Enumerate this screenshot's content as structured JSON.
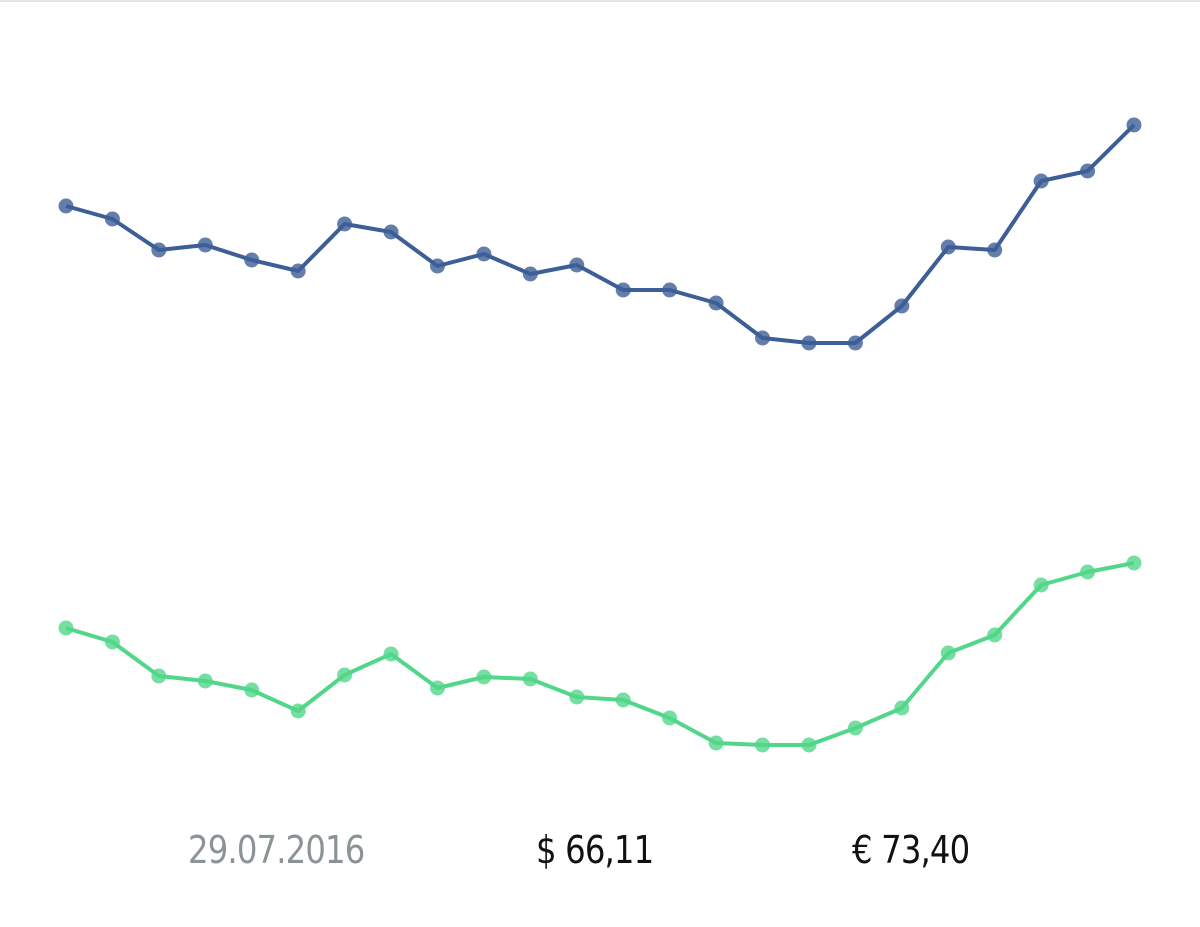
{
  "chart_data": [
    {
      "type": "line",
      "color": "#3d5e96",
      "ylim": [
        0,
        400
      ],
      "values": [
        194,
        181,
        150,
        155,
        140,
        129,
        176,
        168,
        134,
        146,
        126,
        135,
        110,
        110,
        97,
        62,
        57,
        57,
        94,
        153,
        150,
        219,
        229,
        275
      ]
    },
    {
      "type": "line",
      "color": "#52d68a",
      "ylim": [
        0,
        400
      ],
      "values": [
        172,
        158,
        124,
        119,
        110,
        89,
        125,
        146,
        112,
        123,
        121,
        103,
        100,
        82,
        57,
        55,
        55,
        72,
        92,
        147,
        165,
        215,
        228,
        237
      ]
    }
  ],
  "footer": {
    "date": "29.07.2016",
    "usd": "$ 66,11",
    "eur": "€ 73,40"
  }
}
